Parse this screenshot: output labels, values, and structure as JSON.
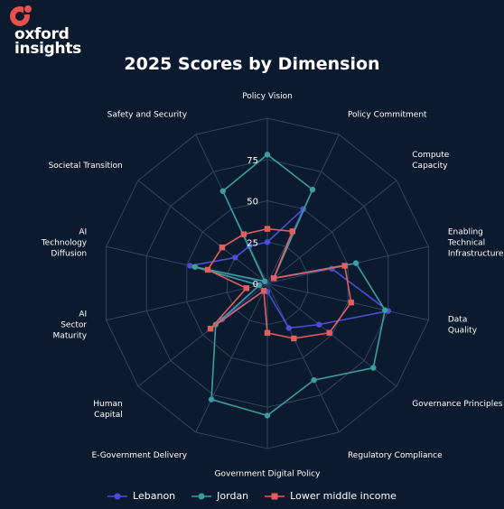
{
  "logo": {
    "line1": "oxford",
    "line2": "insights",
    "accent": "#e8514a"
  },
  "chart_data": {
    "type": "radar",
    "title": "2025 Scores by Dimension",
    "axes": [
      "Policy Vision",
      "Policy Commitment",
      "Compute Capacity",
      "Enabling Technical Infrastructure",
      "Data Quality",
      "Governance Principles",
      "Regulatory Compliance",
      "Government Digital Policy",
      "E-Government Delivery",
      "Human Capital",
      "AI Sector Maturity",
      "AI Technology Diffusion",
      "Societal Transition",
      "Safety and Security"
    ],
    "axis_label_lines": [
      [
        "Policy Vision"
      ],
      [
        "Policy Commitment"
      ],
      [
        "Compute",
        "Capacity"
      ],
      [
        "Enabling",
        "Technical",
        "Infrastructure"
      ],
      [
        "Data",
        "Quality"
      ],
      [
        "Governance Principles"
      ],
      [
        "Regulatory Compliance"
      ],
      [
        "Government Digital Policy"
      ],
      [
        "E-Government Delivery"
      ],
      [
        "Human",
        "Capital"
      ],
      [
        "AI",
        "Sector",
        "Maturity"
      ],
      [
        "AI",
        "Technology",
        "Diffusion"
      ],
      [
        "Societal Transition"
      ],
      [
        "Safety and Security"
      ]
    ],
    "rlim": [
      0,
      100
    ],
    "ticks": [
      0,
      25,
      50,
      75
    ],
    "grid": true,
    "legend_position": "bottom",
    "series": [
      {
        "name": "Lebanon",
        "color": "#4a4fd6",
        "marker": "circle",
        "values": [
          25,
          50,
          5,
          40,
          75,
          40,
          30,
          5,
          5,
          35,
          5,
          48,
          25,
          25
        ]
      },
      {
        "name": "Jordan",
        "color": "#3a9da0",
        "marker": "circle",
        "values": [
          78,
          63,
          5,
          55,
          73,
          82,
          65,
          80,
          78,
          40,
          5,
          45,
          2,
          62
        ]
      },
      {
        "name": "Lower middle income",
        "color": "#e15f5f",
        "marker": "square",
        "values": [
          33,
          35,
          5,
          48,
          52,
          48,
          37,
          30,
          5,
          44,
          13,
          37,
          35,
          33
        ]
      }
    ]
  }
}
